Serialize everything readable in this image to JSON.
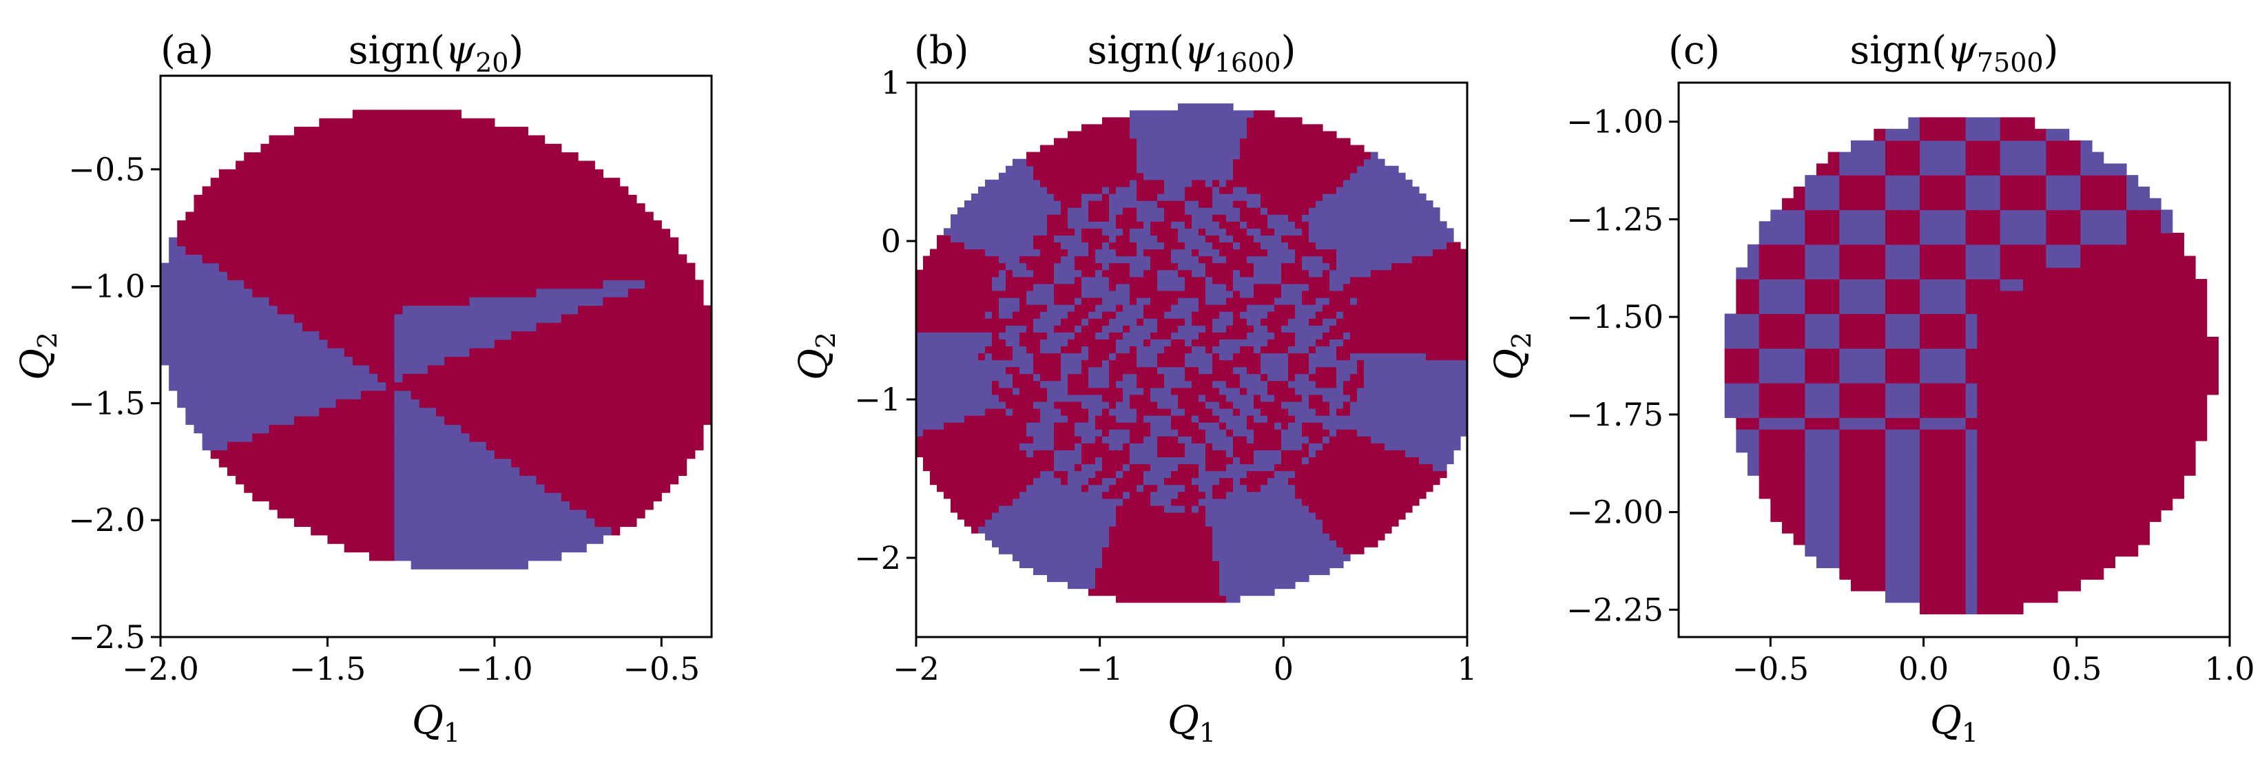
{
  "colors": {
    "positive": "#9b003f",
    "negative": "#5e4fa2",
    "background": "#ffffff"
  },
  "chart_data": [
    {
      "type": "heatmap",
      "panel_label": "(a)",
      "title": {
        "main": "sign(",
        "symbol": "ψ",
        "subscript": "20",
        "close": ")"
      },
      "xlabel": {
        "main": "Q",
        "subscript": "1"
      },
      "ylabel": {
        "main": "Q",
        "subscript": "2"
      },
      "xlim": [
        -2.0,
        -0.35
      ],
      "ylim": [
        -2.5,
        -0.1
      ],
      "xticks": [
        -2.0,
        -1.5,
        -1.0,
        -0.5
      ],
      "xtick_labels": [
        "−2.0",
        "−1.5",
        "−1.0",
        "−0.5"
      ],
      "yticks": [
        -2.5,
        -2.0,
        -1.5,
        -1.0,
        -0.5
      ],
      "ytick_labels": [
        "−2.5",
        "−2.0",
        "−1.5",
        "−1.0",
        "−0.5"
      ],
      "domain": {
        "center": [
          -1.17,
          -1.23
        ],
        "radii": [
          0.82,
          1.0
        ],
        "rotation_deg": 18
      },
      "values": "sign of eigenfunction psi_20 on the sampled (Q1, Q2) grid; +1 and −1 regions",
      "grid": false
    },
    {
      "type": "heatmap",
      "panel_label": "(b)",
      "title": {
        "main": "sign(",
        "symbol": "ψ",
        "subscript": "1600",
        "close": ")"
      },
      "xlabel": {
        "main": "Q",
        "subscript": "1"
      },
      "ylabel": {
        "main": "Q",
        "subscript": "2"
      },
      "xlim": [
        -2.0,
        1.0
      ],
      "ylim": [
        -2.5,
        1.0
      ],
      "xticks": [
        -2,
        -1,
        0,
        1
      ],
      "xtick_labels": [
        "−2",
        "−1",
        "0",
        "1"
      ],
      "yticks": [
        -2,
        -1,
        0,
        1
      ],
      "ytick_labels": [
        "−2",
        "−1",
        "0",
        "1"
      ],
      "domain": {
        "center": [
          -0.5,
          -0.72
        ],
        "radii": [
          1.62,
          1.55
        ],
        "rotation_deg": 35
      },
      "grid": false
    },
    {
      "type": "heatmap",
      "panel_label": "(c)",
      "title": {
        "main": "sign(",
        "symbol": "ψ",
        "subscript": "7500",
        "close": ")"
      },
      "xlabel": {
        "main": "Q",
        "subscript": "1"
      },
      "ylabel": {
        "main": "Q",
        "subscript": "2"
      },
      "xlim": [
        -0.8,
        1.0
      ],
      "ylim": [
        -2.32,
        -0.9
      ],
      "xticks": [
        -0.5,
        0.0,
        0.5,
        1.0
      ],
      "xtick_labels": [
        "−0.5",
        "0.0",
        "0.5",
        "1.0"
      ],
      "yticks": [
        -2.25,
        -2.0,
        -1.75,
        -1.5,
        -1.25,
        -1.0
      ],
      "ytick_labels": [
        "−2.25",
        "−2.00",
        "−1.75",
        "−1.50",
        "−1.25",
        "−1.00"
      ],
      "domain": {
        "center": [
          0.15,
          -1.62
        ],
        "radii": [
          0.8,
          0.64
        ],
        "rotation_deg": 0
      },
      "grid": false
    }
  ]
}
